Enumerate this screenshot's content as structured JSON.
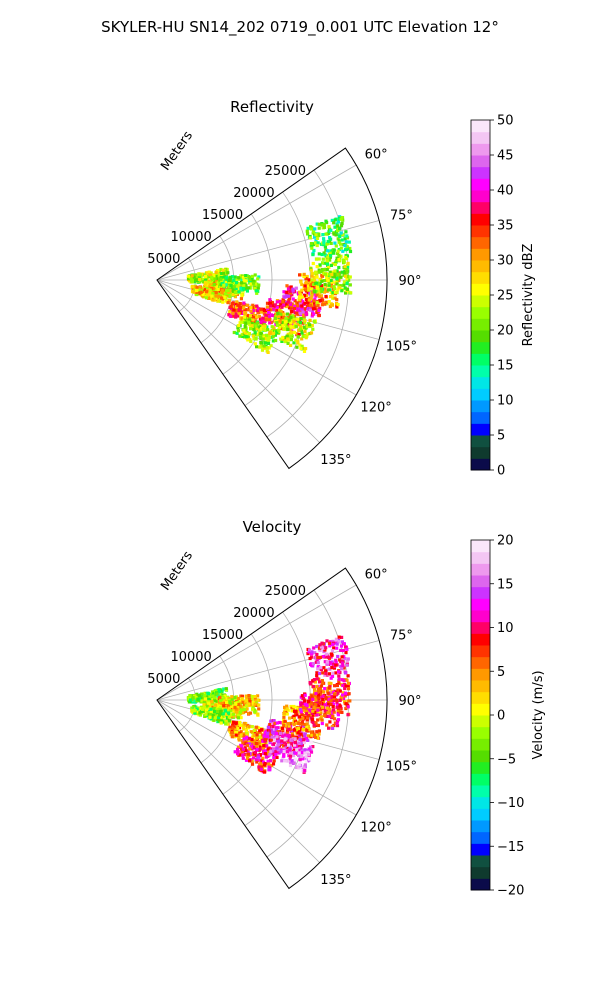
{
  "figure": {
    "title": "SKYLER-HU  SN14_202  0719_0.001 UTC Elevation 12°"
  },
  "chart_data": [
    {
      "type": "polar-sector-radar",
      "panel": "reflectivity",
      "title": "Reflectivity",
      "radial_label": "Meters",
      "radial_ticks": [
        "5000",
        "10000",
        "15000",
        "20000",
        "25000"
      ],
      "radial_values": [
        5000,
        10000,
        15000,
        20000,
        25000
      ],
      "rmax": 30000,
      "theta_range_deg": [
        55,
        145
      ],
      "angle_ticks": [
        "60°",
        "75°",
        "90°",
        "105°",
        "120°",
        "135°"
      ],
      "angle_values": [
        60,
        75,
        90,
        105,
        120,
        135
      ],
      "colorbar": {
        "label": "Reflectivity dBZ",
        "min": 0,
        "max": 50,
        "ticks": [
          "0",
          "5",
          "10",
          "15",
          "20",
          "25",
          "30",
          "35",
          "40",
          "45",
          "50"
        ],
        "tick_values": [
          0,
          5,
          10,
          15,
          20,
          25,
          30,
          35,
          40,
          45,
          50
        ],
        "colors": [
          "#0b0b4a",
          "#0f3a2e",
          "#105040",
          "#0000ff",
          "#0066ff",
          "#0099ff",
          "#00ccff",
          "#00e6e6",
          "#00ffaa",
          "#00ff66",
          "#22ee22",
          "#55dd00",
          "#77ee00",
          "#99ff00",
          "#ccff00",
          "#ffff00",
          "#ffdd00",
          "#ffbb00",
          "#ff9900",
          "#ff6600",
          "#ff3300",
          "#ff0000",
          "#ff0066",
          "#ff00cc",
          "#ff00ff",
          "#cc33ff",
          "#dd66ee",
          "#ee99ee",
          "#f4c6f4",
          "#fbe6fb"
        ]
      },
      "echo_cells": [
        {
          "r": 6500,
          "theta": 85,
          "value": 23
        },
        {
          "r": 8500,
          "theta": 96,
          "value": 27
        },
        {
          "r": 10500,
          "theta": 92,
          "value": 20
        },
        {
          "r": 7000,
          "theta": 103,
          "value": 28
        },
        {
          "r": 12500,
          "theta": 110,
          "value": 33
        },
        {
          "r": 14500,
          "theta": 118,
          "value": 22
        },
        {
          "r": 17000,
          "theta": 105,
          "value": 35
        },
        {
          "r": 19000,
          "theta": 97,
          "value": 38
        },
        {
          "r": 21000,
          "theta": 93,
          "value": 30
        },
        {
          "r": 22500,
          "theta": 88,
          "value": 22
        },
        {
          "r": 18500,
          "theta": 110,
          "value": 24
        },
        {
          "r": 23000,
          "theta": 76,
          "value": 18
        }
      ]
    },
    {
      "type": "polar-sector-radar",
      "panel": "velocity",
      "title": "Velocity",
      "radial_label": "Meters",
      "radial_ticks": [
        "5000",
        "10000",
        "15000",
        "20000",
        "25000"
      ],
      "radial_values": [
        5000,
        10000,
        15000,
        20000,
        25000
      ],
      "rmax": 30000,
      "theta_range_deg": [
        55,
        145
      ],
      "angle_ticks": [
        "60°",
        "75°",
        "90°",
        "105°",
        "120°",
        "135°"
      ],
      "angle_values": [
        60,
        75,
        90,
        105,
        120,
        135
      ],
      "colorbar": {
        "label": "Velocity (m/s)",
        "min": -20,
        "max": 20,
        "ticks": [
          "−20",
          "−15",
          "−10",
          "−5",
          "0",
          "5",
          "10",
          "15",
          "20"
        ],
        "tick_values": [
          -20,
          -15,
          -10,
          -5,
          0,
          5,
          10,
          15,
          20
        ],
        "colors": [
          "#0b0b4a",
          "#0f3a2e",
          "#105040",
          "#0000ff",
          "#0066ff",
          "#0099ff",
          "#00ccff",
          "#00e6e6",
          "#00ffaa",
          "#00ff66",
          "#22ee22",
          "#55dd00",
          "#77ee00",
          "#99ff00",
          "#ccff00",
          "#ffff00",
          "#ffdd00",
          "#ffbb00",
          "#ff9900",
          "#ff6600",
          "#ff3300",
          "#ff0000",
          "#ff0066",
          "#ff00cc",
          "#ff00ff",
          "#cc33ff",
          "#dd66ee",
          "#ee99ee",
          "#f4c6f4",
          "#fbe6fb"
        ]
      },
      "echo_cells": [
        {
          "r": 6500,
          "theta": 85,
          "value": -4
        },
        {
          "r": 8500,
          "theta": 96,
          "value": 1
        },
        {
          "r": 10500,
          "theta": 92,
          "value": 2
        },
        {
          "r": 7000,
          "theta": 103,
          "value": -3
        },
        {
          "r": 12500,
          "theta": 110,
          "value": 4
        },
        {
          "r": 14500,
          "theta": 118,
          "value": 9
        },
        {
          "r": 17000,
          "theta": 105,
          "value": 10
        },
        {
          "r": 19000,
          "theta": 97,
          "value": 5
        },
        {
          "r": 21000,
          "theta": 93,
          "value": 9
        },
        {
          "r": 22500,
          "theta": 88,
          "value": 8
        },
        {
          "r": 18500,
          "theta": 110,
          "value": 14
        },
        {
          "r": 23000,
          "theta": 76,
          "value": 12
        }
      ]
    }
  ]
}
